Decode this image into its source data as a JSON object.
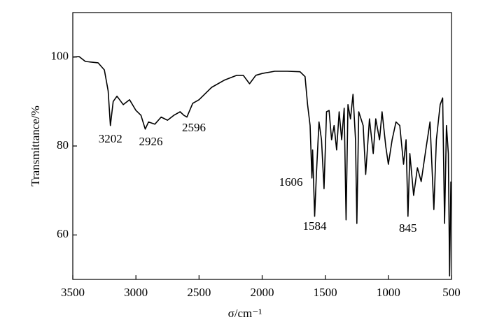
{
  "chart_data": {
    "type": "line",
    "x_label": "σ/cm⁻¹",
    "y_label": "Transmittance/%",
    "xlim": [
      3500,
      500
    ],
    "xticks": [
      3500,
      3000,
      2500,
      2000,
      1500,
      1000,
      500
    ],
    "ylim": [
      50,
      110
    ],
    "yticks": [
      60,
      80,
      100
    ],
    "annotations": [
      3202,
      2926,
      2596,
      1606,
      1584,
      845
    ],
    "series": [
      {
        "color": "#000000",
        "x": [
          3500,
          3450,
          3400,
          3300,
          3250,
          3220,
          3202,
          3180,
          3150,
          3100,
          3050,
          3000,
          2960,
          2926,
          2900,
          2850,
          2800,
          2750,
          2700,
          2650,
          2620,
          2596,
          2550,
          2500,
          2400,
          2300,
          2200,
          2150,
          2100,
          2050,
          2000,
          1900,
          1800,
          1700,
          1660,
          1640,
          1620,
          1606,
          1600,
          1584,
          1570,
          1550,
          1530,
          1510,
          1490,
          1470,
          1450,
          1430,
          1410,
          1390,
          1370,
          1350,
          1335,
          1320,
          1300,
          1280,
          1260,
          1250,
          1235,
          1200,
          1180,
          1150,
          1120,
          1100,
          1070,
          1050,
          1020,
          1000,
          970,
          940,
          910,
          880,
          860,
          845,
          830,
          800,
          770,
          740,
          700,
          670,
          640,
          620,
          590,
          570,
          555,
          540,
          525,
          515,
          505
        ],
        "values": [
          100,
          100.1,
          99,
          98.7,
          97.1,
          92.4,
          84.6,
          90,
          91.2,
          89.3,
          90.4,
          88,
          86.9,
          83.8,
          85.4,
          84.9,
          86.5,
          85.8,
          86.9,
          87.7,
          86.9,
          86.5,
          89.6,
          90.4,
          93.2,
          94.8,
          95.9,
          95.9,
          94,
          95.9,
          96.3,
          96.8,
          96.8,
          96.7,
          95.6,
          89.3,
          84.6,
          72.8,
          79.1,
          64.2,
          73.6,
          85.4,
          81.4,
          70.4,
          87.7,
          88,
          81.4,
          84.6,
          79.1,
          87.7,
          81.4,
          88.5,
          63.4,
          89.3,
          86.1,
          91.6,
          81.4,
          62.6,
          87.7,
          84.6,
          73.6,
          86.1,
          78.3,
          86.1,
          81.4,
          87.7,
          79.8,
          75.9,
          81.4,
          85.4,
          84.6,
          75.9,
          81.4,
          64.2,
          78.3,
          68.9,
          75.1,
          72,
          79.8,
          85.4,
          65.7,
          81.4,
          89.3,
          90.8,
          62.6,
          84.6,
          78.3,
          50.8,
          72
        ]
      }
    ]
  }
}
